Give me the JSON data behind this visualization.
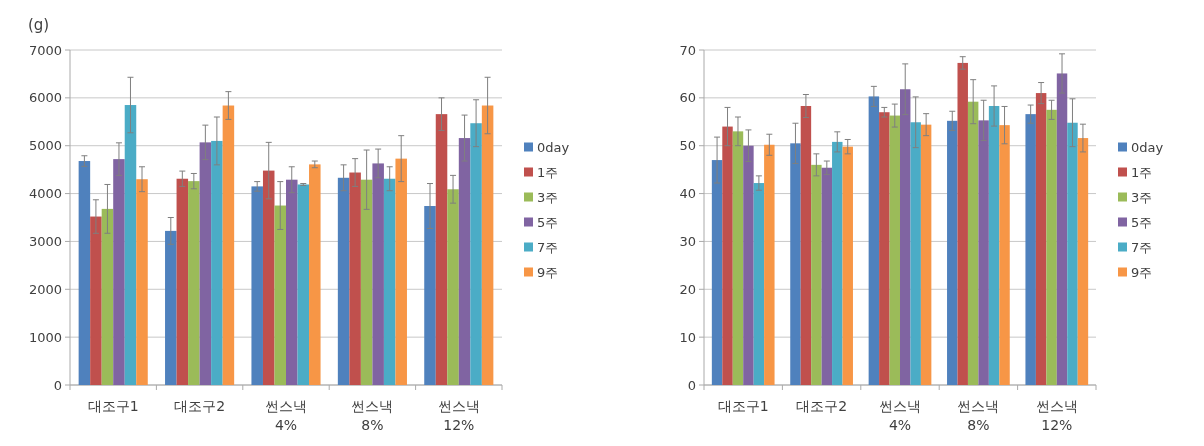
{
  "chart_data": [
    {
      "type": "bar",
      "ylabel": "(g)",
      "categories": [
        "대조구1",
        "대조구2",
        "썬스낵 4%",
        "썬스낵 8%",
        "썬스낵 12%"
      ],
      "ylim": [
        0,
        7000
      ],
      "yticks": [
        0,
        1000,
        2000,
        3000,
        4000,
        5000,
        6000,
        7000
      ],
      "grid": "y",
      "legend": "right",
      "series": [
        {
          "name": "0day",
          "color": "#4f81bd",
          "values": [
            4680,
            3220,
            4150,
            4330,
            3740
          ],
          "errors": [
            110,
            280,
            100,
            270,
            470
          ]
        },
        {
          "name": "1주",
          "color": "#c0504d",
          "values": [
            3520,
            4310,
            4480,
            4440,
            5660
          ],
          "errors": [
            350,
            160,
            590,
            290,
            340
          ]
        },
        {
          "name": "3주",
          "color": "#9bbb59",
          "values": [
            3680,
            4260,
            3750,
            4290,
            4090
          ],
          "errors": [
            510,
            160,
            500,
            620,
            290
          ]
        },
        {
          "name": "5주",
          "color": "#8064a2",
          "values": [
            4720,
            5070,
            4290,
            4630,
            5160
          ],
          "errors": [
            340,
            360,
            270,
            300,
            480
          ]
        },
        {
          "name": "7주",
          "color": "#4bacc6",
          "values": [
            5850,
            5100,
            4190,
            4310,
            5470
          ],
          "errors": [
            580,
            500,
            20,
            250,
            490
          ]
        },
        {
          "name": "9주",
          "color": "#f79646",
          "values": [
            4300,
            5840,
            4610,
            4730,
            5840
          ],
          "errors": [
            260,
            290,
            70,
            480,
            590
          ]
        }
      ]
    },
    {
      "type": "bar",
      "categories": [
        "대조구1",
        "대조구2",
        "썬스낵 4%",
        "썬스낵 8%",
        "썬스낵 12%"
      ],
      "ylim": [
        0,
        70
      ],
      "yticks": [
        0,
        10,
        20,
        30,
        40,
        50,
        60,
        70
      ],
      "grid": "y",
      "legend": "right",
      "series": [
        {
          "name": "0day",
          "color": "#4f81bd",
          "values": [
            47,
            50.5,
            60.3,
            55.2,
            56.6
          ],
          "errors": [
            4.8,
            4.2,
            2.1,
            2,
            1.9
          ]
        },
        {
          "name": "1주",
          "color": "#c0504d",
          "values": [
            54,
            58.3,
            57,
            67.3,
            61
          ],
          "errors": [
            4,
            2.4,
            1,
            1.3,
            2.2
          ]
        },
        {
          "name": "3주",
          "color": "#9bbb59",
          "values": [
            53,
            46,
            56.3,
            59.2,
            57.5
          ],
          "errors": [
            3,
            2.3,
            2.4,
            4.6,
            2
          ]
        },
        {
          "name": "5주",
          "color": "#8064a2",
          "values": [
            50,
            45.4,
            61.8,
            55.3,
            65.1
          ],
          "errors": [
            3.3,
            1.4,
            5.3,
            4.2,
            4.1
          ]
        },
        {
          "name": "7주",
          "color": "#4bacc6",
          "values": [
            42.2,
            50.8,
            54.9,
            58.3,
            54.8
          ],
          "errors": [
            1.5,
            2.1,
            5.3,
            4.2,
            5
          ]
        },
        {
          "name": "9주",
          "color": "#f79646",
          "values": [
            50.2,
            49.8,
            54.4,
            54.3,
            51.6
          ],
          "errors": [
            2.2,
            1.5,
            2.3,
            3.9,
            2.9
          ]
        }
      ]
    }
  ]
}
